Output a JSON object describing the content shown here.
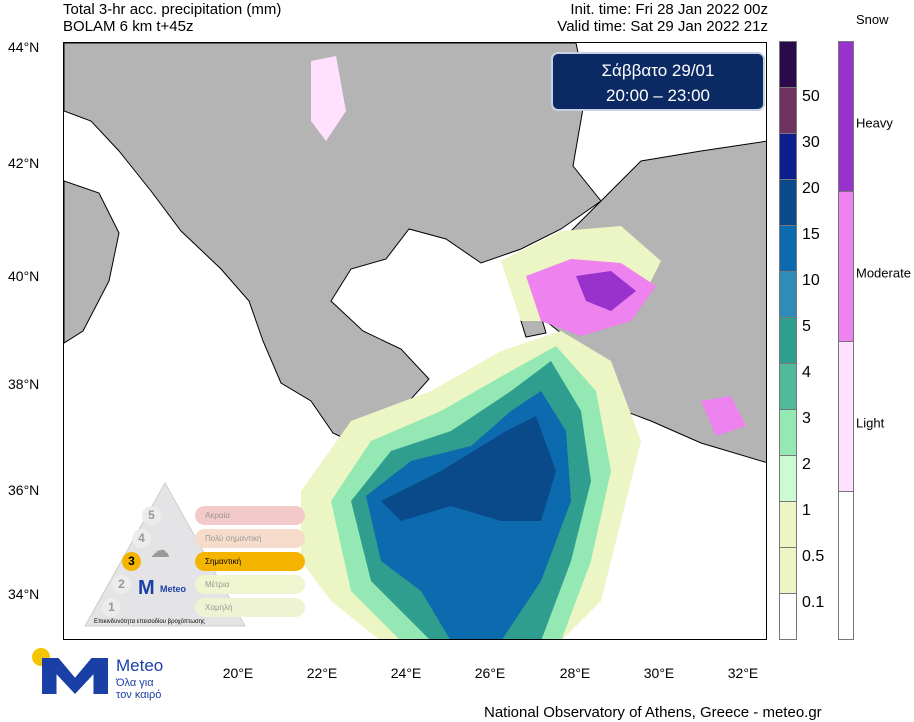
{
  "header": {
    "title_line1": "Total 3-hr acc. precipitation (mm)",
    "title_line2": "BOLAM 6 km t+45z",
    "init_time": "Init. time: Fri 28 Jan 2022 00z",
    "valid_time": "Valid time: Sat 29 Jan 2022 21z"
  },
  "date_box": {
    "day": "Σάββατο 29/01",
    "hours": "20:00 – 23:00"
  },
  "lat_labels": [
    "44°N",
    "42°N",
    "40°N",
    "38°N",
    "36°N",
    "34°N"
  ],
  "lon_labels": [
    "20°E",
    "22°E",
    "24°E",
    "26°E",
    "28°E",
    "30°E",
    "32°E"
  ],
  "precip_scale": {
    "labels": [
      "50",
      "30",
      "20",
      "15",
      "10",
      "5",
      "4",
      "3",
      "2",
      "1",
      "0.5",
      "0.1"
    ],
    "colors": [
      "#2a0a4a",
      "#70325f",
      "#0d1f8f",
      "#0a4a8a",
      "#0c6aae",
      "#2f8cb8",
      "#2f9e8e",
      "#52b89a",
      "#94e8b4",
      "#cdf9d3",
      "#ecf6c4",
      "#ecf6c4",
      "#ffffff"
    ]
  },
  "snow_scale": {
    "title": "Snow",
    "labels": [
      "Heavy",
      "Moderate",
      "Light"
    ],
    "colors": [
      "#9932cc",
      "#ee82ee",
      "#ffe0ff",
      "#ffffff"
    ]
  },
  "warning_pyramid": {
    "levels": [
      {
        "n": "5",
        "label": "Ακραία"
      },
      {
        "n": "4",
        "label": "Πολύ σημαντική"
      },
      {
        "n": "3",
        "label": "Σημαντική"
      },
      {
        "n": "2",
        "label": "Μέτρια"
      },
      {
        "n": "1",
        "label": "Χαμηλή"
      }
    ],
    "active_level": "3",
    "caption": "Επικινδυνότητα επεισοδίου βροχόπτωσης",
    "logo_text": "Meteo"
  },
  "logo": {
    "name": "Meteo",
    "tagline1": "Όλα για",
    "tagline2": "τον καιρό"
  },
  "footer": "National Observatory of Athens, Greece - meteo.gr"
}
